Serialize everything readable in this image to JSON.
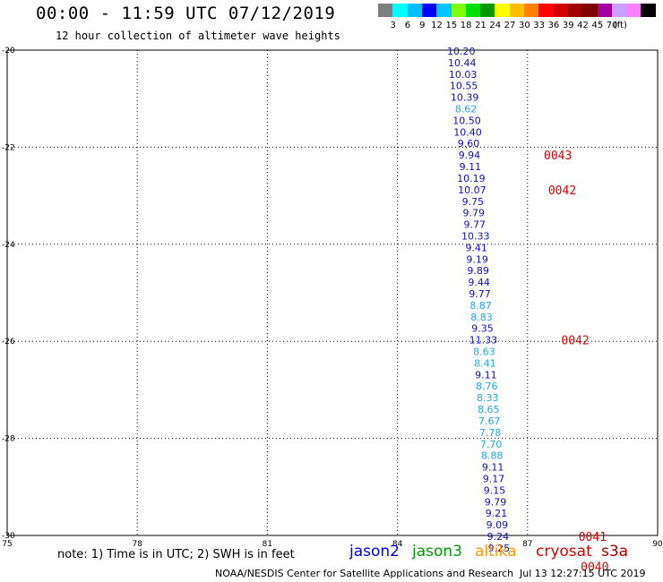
{
  "header": {
    "title": "00:00 - 11:59 UTC 07/12/2019",
    "subtitle": "12 hour collection of altimeter wave heights"
  },
  "color_scale": {
    "colors": [
      "#7f7f7f",
      "#00ffff",
      "#00bfff",
      "#0000ff",
      "#00c8ff",
      "#7fff00",
      "#00e000",
      "#009b00",
      "#ffff00",
      "#ffbf00",
      "#ff8000",
      "#ff0000",
      "#d00000",
      "#a00000",
      "#800000",
      "#a000a0",
      "#c8a0ff",
      "#ff80ff",
      "#000000"
    ],
    "labels": [
      "3",
      "6",
      "9",
      "12",
      "15",
      "18",
      "21",
      "24",
      "27",
      "30",
      "33",
      "36",
      "39",
      "42",
      "45",
      "70"
    ],
    "unit": "(ft)"
  },
  "chart_data": {
    "type": "scatter",
    "xlim": [
      75,
      90
    ],
    "ylim": [
      -30,
      -20
    ],
    "x_ticks": [
      "75",
      "78",
      "81",
      "84",
      "87",
      "90"
    ],
    "y_ticks": [
      "-20",
      "-22",
      "-24",
      "-26",
      "-28",
      "-30"
    ],
    "grid": true,
    "colors": {
      "dark": "#1010c0",
      "light": "#20a8e0",
      "track": "#e00000"
    },
    "points": [
      {
        "lon": 85.47,
        "lat": -20.0,
        "value": "10.20",
        "shade": "dark"
      },
      {
        "lon": 85.49,
        "lat": -20.24,
        "value": "10.44",
        "shade": "dark"
      },
      {
        "lon": 85.51,
        "lat": -20.48,
        "value": "10.03",
        "shade": "dark"
      },
      {
        "lon": 85.53,
        "lat": -20.71,
        "value": "10.55",
        "shade": "dark"
      },
      {
        "lon": 85.55,
        "lat": -20.95,
        "value": "10.39",
        "shade": "dark"
      },
      {
        "lon": 85.58,
        "lat": -21.19,
        "value": "8.62",
        "shade": "light"
      },
      {
        "lon": 85.6,
        "lat": -21.43,
        "value": "10.50",
        "shade": "dark"
      },
      {
        "lon": 85.62,
        "lat": -21.67,
        "value": "10.40",
        "shade": "dark"
      },
      {
        "lon": 85.64,
        "lat": -21.9,
        "value": "9.60",
        "shade": "dark"
      },
      {
        "lon": 85.66,
        "lat": -22.14,
        "value": "9.94",
        "shade": "dark"
      },
      {
        "lon": 85.68,
        "lat": -22.38,
        "value": "9.11",
        "shade": "dark"
      },
      {
        "lon": 85.7,
        "lat": -22.62,
        "value": "10.19",
        "shade": "dark"
      },
      {
        "lon": 85.72,
        "lat": -22.86,
        "value": "10.07",
        "shade": "dark"
      },
      {
        "lon": 85.74,
        "lat": -23.1,
        "value": "9.75",
        "shade": "dark"
      },
      {
        "lon": 85.76,
        "lat": -23.33,
        "value": "9.79",
        "shade": "dark"
      },
      {
        "lon": 85.78,
        "lat": -23.57,
        "value": "9.77",
        "shade": "dark"
      },
      {
        "lon": 85.8,
        "lat": -23.81,
        "value": "10.33",
        "shade": "dark"
      },
      {
        "lon": 85.82,
        "lat": -24.05,
        "value": "9.41",
        "shade": "dark"
      },
      {
        "lon": 85.84,
        "lat": -24.29,
        "value": "9.19",
        "shade": "dark"
      },
      {
        "lon": 85.86,
        "lat": -24.52,
        "value": "9.89",
        "shade": "dark"
      },
      {
        "lon": 85.88,
        "lat": -24.76,
        "value": "9.44",
        "shade": "dark"
      },
      {
        "lon": 85.9,
        "lat": -25.0,
        "value": "9.77",
        "shade": "dark"
      },
      {
        "lon": 85.92,
        "lat": -25.24,
        "value": "8.87",
        "shade": "light"
      },
      {
        "lon": 85.94,
        "lat": -25.48,
        "value": "8.83",
        "shade": "light"
      },
      {
        "lon": 85.96,
        "lat": -25.71,
        "value": "9.35",
        "shade": "dark"
      },
      {
        "lon": 85.98,
        "lat": -25.95,
        "value": "11.33",
        "shade": "dark"
      },
      {
        "lon": 86.0,
        "lat": -26.19,
        "value": "8.63",
        "shade": "light"
      },
      {
        "lon": 86.02,
        "lat": -26.43,
        "value": "8.41",
        "shade": "light"
      },
      {
        "lon": 86.04,
        "lat": -26.67,
        "value": "9.11",
        "shade": "dark"
      },
      {
        "lon": 86.06,
        "lat": -26.9,
        "value": "8.76",
        "shade": "light"
      },
      {
        "lon": 86.08,
        "lat": -27.14,
        "value": "8.33",
        "shade": "light"
      },
      {
        "lon": 86.1,
        "lat": -27.38,
        "value": "8.65",
        "shade": "light"
      },
      {
        "lon": 86.12,
        "lat": -27.62,
        "value": "7.67",
        "shade": "light"
      },
      {
        "lon": 86.14,
        "lat": -27.86,
        "value": "7.78",
        "shade": "light"
      },
      {
        "lon": 86.16,
        "lat": -28.1,
        "value": "7.70",
        "shade": "light"
      },
      {
        "lon": 86.18,
        "lat": -28.33,
        "value": "8.88",
        "shade": "light"
      },
      {
        "lon": 86.2,
        "lat": -28.57,
        "value": "9.11",
        "shade": "dark"
      },
      {
        "lon": 86.22,
        "lat": -28.81,
        "value": "9.17",
        "shade": "dark"
      },
      {
        "lon": 86.24,
        "lat": -29.05,
        "value": "9.15",
        "shade": "dark"
      },
      {
        "lon": 86.26,
        "lat": -29.29,
        "value": "9.79",
        "shade": "dark"
      },
      {
        "lon": 86.28,
        "lat": -29.52,
        "value": "9.21",
        "shade": "dark"
      },
      {
        "lon": 86.3,
        "lat": -29.76,
        "value": "9.09",
        "shade": "dark"
      },
      {
        "lon": 86.32,
        "lat": -30.0,
        "value": "9.24",
        "shade": "dark"
      },
      {
        "lon": 86.34,
        "lat": -30.24,
        "value": "9.25",
        "shade": "dark"
      }
    ],
    "track_labels": [
      {
        "lon": 87.7,
        "lat": -22.14,
        "text": "0043"
      },
      {
        "lon": 87.8,
        "lat": -22.86,
        "text": "0042"
      },
      {
        "lon": 88.1,
        "lat": -25.95,
        "value_note": "",
        "text": "0042"
      },
      {
        "lon": 88.5,
        "lat": -30.0,
        "text": "0041"
      },
      {
        "lon": 88.55,
        "lat": -30.62,
        "text": "0040"
      }
    ]
  },
  "footer": {
    "note": "note: 1) Time is in UTC; 2) SWH is in feet",
    "satellites": [
      {
        "name": "jason2",
        "color": "#0000ee"
      },
      {
        "name": "jason3",
        "color": "#009b00"
      },
      {
        "name": "altika",
        "color": "#ff9900"
      },
      {
        "name": "cryosat",
        "color": "#e00000"
      },
      {
        "name": "s3a",
        "color": "#a00000"
      }
    ],
    "credit": "NOAA/NESDIS Center for Satellite Applications and Research",
    "timestamp": "Jul 13 12:27:15 UTC 2019"
  }
}
